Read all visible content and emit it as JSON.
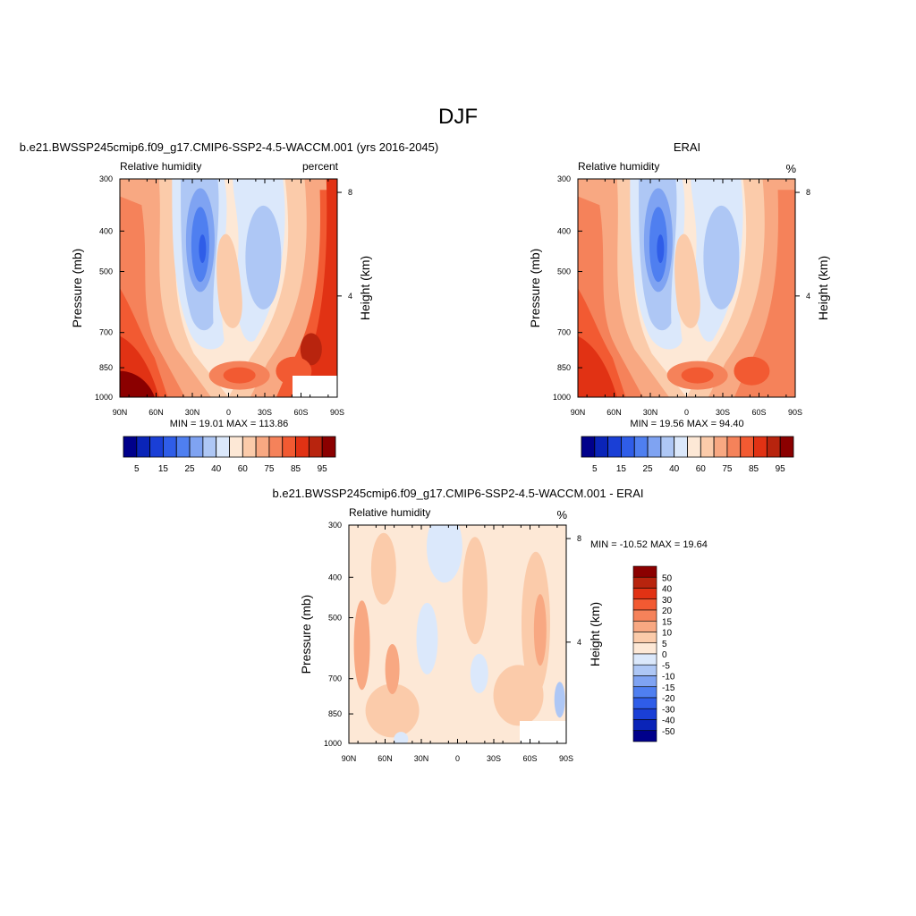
{
  "title": "DJF",
  "palettes": {
    "rh": [
      "#00008b",
      "#0a24b8",
      "#1a3fd6",
      "#2f5de8",
      "#4f7ff0",
      "#7fa3f2",
      "#aec7f5",
      "#dbe8fb",
      "#fde8d6",
      "#fbcbaa",
      "#f8a882",
      "#f5825a",
      "#f25a32",
      "#e13214",
      "#b8240e",
      "#8b0000"
    ],
    "diff": [
      "#00008b",
      "#0a24b8",
      "#1a3fd6",
      "#2f5de8",
      "#4f7ff0",
      "#7fa3f2",
      "#aec7f5",
      "#dbe8fb",
      "#fde8d6",
      "#fbcbaa",
      "#f8a882",
      "#f5825a",
      "#f25a32",
      "#e13214",
      "#b8240e",
      "#8b0000"
    ]
  },
  "chart_data": [
    {
      "type": "heatmap",
      "id": "model",
      "title": "b.e21.BWSSP245cmip6.f09_g17.CMIP6-SSP2-4.5-WACCM.001 (yrs 2016-2045)",
      "left_label": "Relative humidity",
      "right_label": "percent",
      "ylabel": "Pressure (mb)",
      "ylabel_right": "Height (km)",
      "x_ticks": [
        "90N",
        "60N",
        "30N",
        "0",
        "30S",
        "60S",
        "90S"
      ],
      "y_ticks": [
        "300",
        "400",
        "500",
        "700",
        "850",
        "1000"
      ],
      "y_ticks_right": [
        "8",
        "4"
      ],
      "stats": "MIN =  19.01  MAX = 113.86",
      "colorbar_labels": [
        "5",
        "15",
        "25",
        "40",
        "60",
        "75",
        "85",
        "95"
      ]
    },
    {
      "type": "heatmap",
      "id": "obs",
      "title": "ERAI",
      "left_label": "Relative humidity",
      "right_label": "%",
      "ylabel": "Pressure (mb)",
      "ylabel_right": "Height (km)",
      "x_ticks": [
        "90N",
        "60N",
        "30N",
        "0",
        "30S",
        "60S",
        "90S"
      ],
      "y_ticks": [
        "300",
        "400",
        "500",
        "700",
        "850",
        "1000"
      ],
      "y_ticks_right": [
        "8",
        "4"
      ],
      "stats": "MIN =  19.56  MAX =  94.40",
      "colorbar_labels": [
        "5",
        "15",
        "25",
        "40",
        "60",
        "75",
        "85",
        "95"
      ]
    },
    {
      "type": "heatmap",
      "id": "diff",
      "title": "b.e21.BWSSP245cmip6.f09_g17.CMIP6-SSP2-4.5-WACCM.001 - ERAI",
      "left_label": "Relative humidity",
      "right_label": "%",
      "ylabel": "Pressure (mb)",
      "ylabel_right": "Height (km)",
      "x_ticks": [
        "90N",
        "60N",
        "30N",
        "0",
        "30S",
        "60S",
        "90S"
      ],
      "y_ticks": [
        "300",
        "400",
        "500",
        "700",
        "850",
        "1000"
      ],
      "y_ticks_right": [
        "8",
        "4"
      ],
      "stats": "MIN = -10.52  MAX =  19.64",
      "colorbar_labels": [
        "50",
        "40",
        "30",
        "20",
        "15",
        "10",
        "5",
        "0",
        "-5",
        "-10",
        "-15",
        "-20",
        "-30",
        "-40",
        "-50"
      ]
    }
  ]
}
